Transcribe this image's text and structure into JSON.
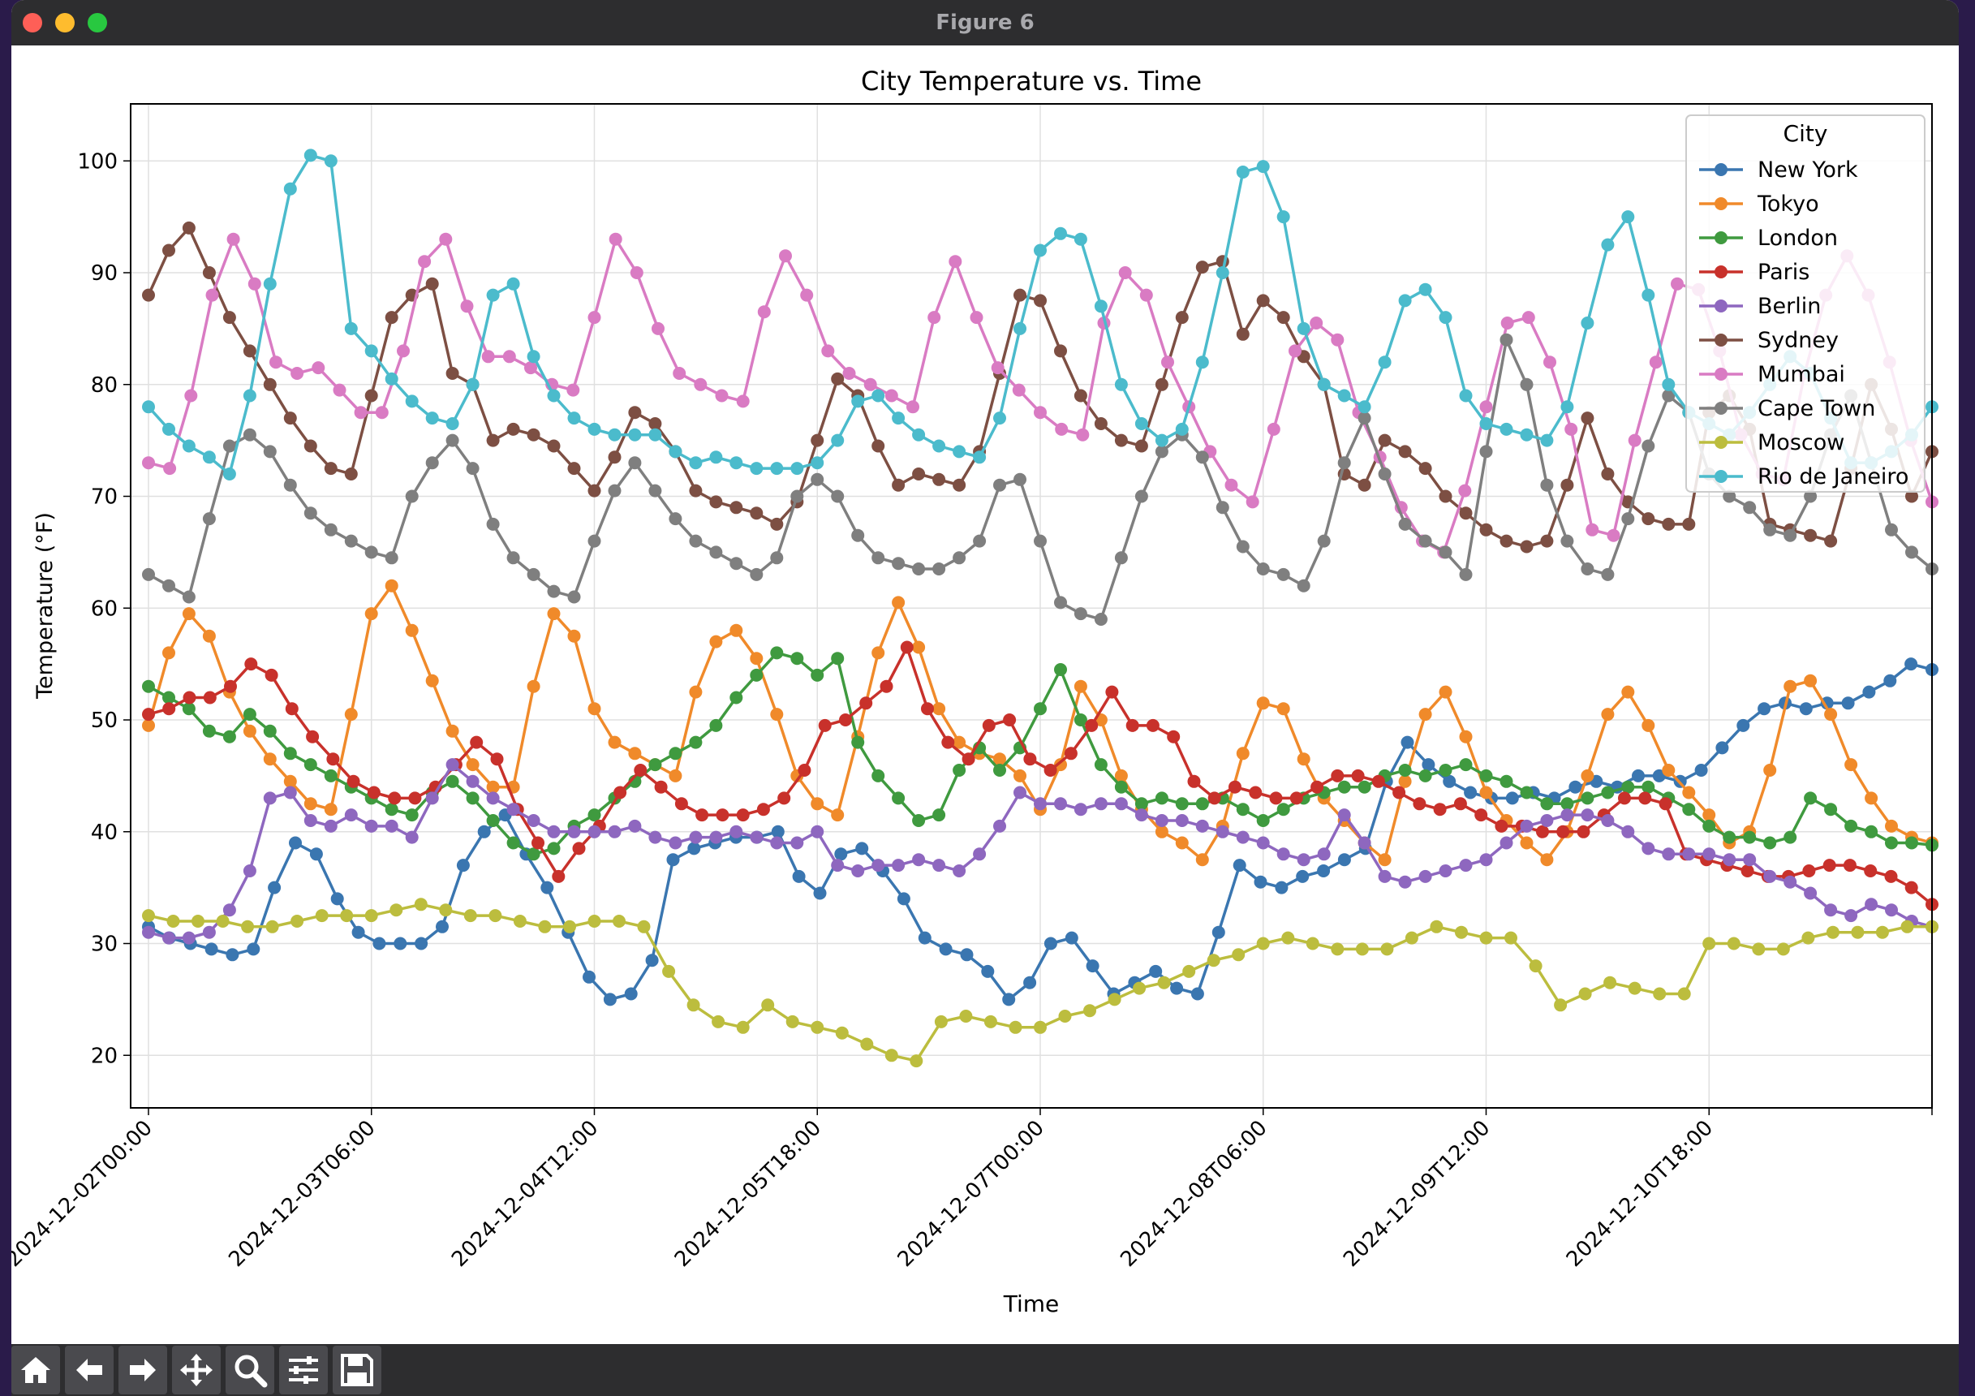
{
  "window": {
    "title": "Figure 6"
  },
  "toolbar": {
    "buttons": [
      {
        "name": "home-icon"
      },
      {
        "name": "back-arrow-icon"
      },
      {
        "name": "forward-arrow-icon"
      },
      {
        "name": "pan-move-icon"
      },
      {
        "name": "zoom-magnifier-icon"
      },
      {
        "name": "configure-subplots-icon"
      },
      {
        "name": "save-floppy-icon"
      }
    ]
  },
  "chart_data": {
    "type": "line",
    "title": "City Temperature vs. Time",
    "xlabel": "Time",
    "ylabel": "Temperature (°F)",
    "x_start": "2024-12-02T00:00",
    "x_step_hours": 3,
    "xlim": [
      "2024-12-01T21:36",
      "2024-12-12T00:00"
    ],
    "ylim": [
      15.3,
      105.1
    ],
    "yticks": [
      20,
      30,
      40,
      50,
      60,
      70,
      80,
      90,
      100
    ],
    "xtick_labels": [
      "2024-12-02T00:00",
      "2024-12-03T06:00",
      "2024-12-04T12:00",
      "2024-12-05T18:00",
      "2024-12-07T00:00",
      "2024-12-08T06:00",
      "2024-12-09T12:00",
      "2024-12-10T18:00"
    ],
    "grid": true,
    "legend": {
      "title": "City",
      "placement": "top-right"
    },
    "marker": "circle",
    "series": [
      {
        "name": "New York",
        "color": "#3a76b0",
        "values": [
          31.5,
          30.5,
          30.0,
          29.5,
          29.0,
          29.5,
          35.0,
          39.0,
          38.0,
          34.0,
          31.0,
          30.0,
          30.0,
          30.0,
          31.5,
          37.0,
          40.0,
          41.5,
          38.0,
          35.0,
          31.0,
          27.0,
          25.0,
          25.5,
          28.5,
          37.5,
          38.5,
          39.0,
          39.5,
          39.5,
          40.0,
          36.0,
          34.5,
          38.0,
          38.5,
          36.5,
          34.0,
          30.5,
          29.5,
          29.0,
          27.5,
          25.0,
          26.5,
          30.0,
          30.5,
          28.0,
          25.5,
          26.5,
          27.5,
          26.0,
          25.5,
          31.0,
          37.0,
          35.5,
          35.0,
          36.0,
          36.5,
          37.5,
          38.5,
          44.5,
          48.0,
          46.0,
          44.5,
          43.5,
          43.0,
          43.0,
          43.5,
          43.0,
          44.0,
          44.5,
          44.0,
          45.0,
          45.0,
          44.5,
          45.5,
          47.5,
          49.5,
          51.0,
          51.5,
          51.0,
          51.5,
          51.5,
          52.5,
          53.5,
          55.0,
          54.5
        ]
      },
      {
        "name": "Tokyo",
        "color": "#f08a2a",
        "values": [
          49.5,
          56.0,
          59.5,
          57.5,
          52.5,
          49.0,
          46.5,
          44.5,
          42.5,
          42.0,
          50.5,
          59.5,
          62.0,
          58.0,
          53.5,
          49.0,
          46.0,
          44.0,
          44.0,
          53.0,
          59.5,
          57.5,
          51.0,
          48.0,
          47.0,
          46.0,
          45.0,
          52.5,
          57.0,
          58.0,
          55.5,
          50.5,
          45.0,
          42.5,
          41.5,
          48.5,
          56.0,
          60.5,
          56.5,
          51.0,
          48.0,
          47.0,
          46.5,
          45.0,
          42.0,
          46.0,
          53.0,
          50.0,
          45.0,
          42.0,
          40.0,
          39.0,
          37.5,
          40.5,
          47.0,
          51.5,
          51.0,
          46.5,
          43.0,
          41.0,
          39.0,
          37.5,
          44.5,
          50.5,
          52.5,
          48.5,
          43.5,
          41.0,
          39.0,
          37.5,
          40.0,
          45.0,
          50.5,
          52.5,
          49.5,
          45.5,
          43.5,
          41.5,
          39.0,
          40.0,
          45.5,
          53.0,
          53.5,
          50.5,
          46.0,
          43.0,
          40.5,
          39.5,
          39.0
        ]
      },
      {
        "name": "London",
        "color": "#3f9a3f",
        "values": [
          53.0,
          52.0,
          51.0,
          49.0,
          48.5,
          50.5,
          49.0,
          47.0,
          46.0,
          45.0,
          44.0,
          43.0,
          42.0,
          41.5,
          43.5,
          44.5,
          43.0,
          41.0,
          39.0,
          38.0,
          38.5,
          40.5,
          41.5,
          43.0,
          44.5,
          46.0,
          47.0,
          48.0,
          49.5,
          52.0,
          54.0,
          56.0,
          55.5,
          54.0,
          55.5,
          48.0,
          45.0,
          43.0,
          41.0,
          41.5,
          45.5,
          47.5,
          45.5,
          47.5,
          51.0,
          54.5,
          50.0,
          46.0,
          44.0,
          42.5,
          43.0,
          42.5,
          42.5,
          43.0,
          42.0,
          41.0,
          42.0,
          43.0,
          43.5,
          44.0,
          44.0,
          45.0,
          45.5,
          45.0,
          45.5,
          46.0,
          45.0,
          44.5,
          43.5,
          42.5,
          42.5,
          43.0,
          43.5,
          44.0,
          44.0,
          43.0,
          42.0,
          40.5,
          39.5,
          39.5,
          39.0,
          39.5,
          43.0,
          42.0,
          40.5,
          40.0,
          39.0,
          39.0,
          38.8
        ]
      },
      {
        "name": "Paris",
        "color": "#c8312b",
        "values": [
          50.5,
          51.0,
          52.0,
          52.0,
          53.0,
          55.0,
          54.0,
          51.0,
          48.5,
          46.5,
          44.5,
          43.5,
          43.0,
          43.0,
          44.0,
          46.0,
          48.0,
          46.5,
          42.0,
          39.0,
          36.0,
          38.5,
          40.5,
          43.5,
          45.5,
          44.0,
          42.5,
          41.5,
          41.5,
          41.5,
          42.0,
          43.0,
          45.5,
          49.5,
          50.0,
          51.5,
          53.0,
          56.5,
          51.0,
          48.0,
          46.5,
          49.5,
          50.0,
          46.5,
          45.5,
          47.0,
          49.5,
          52.5,
          49.5,
          49.5,
          48.5,
          44.5,
          43.0,
          44.0,
          43.5,
          43.0,
          43.0,
          44.0,
          45.0,
          45.0,
          44.5,
          43.5,
          42.5,
          42.0,
          42.5,
          41.5,
          40.5,
          40.5,
          40.0,
          40.0,
          40.0,
          41.5,
          43.0,
          43.0,
          42.5,
          38.0,
          37.5,
          37.0,
          36.5,
          36.0,
          36.0,
          36.5,
          37.0,
          37.0,
          36.5,
          36.0,
          35.0,
          33.5
        ]
      },
      {
        "name": "Berlin",
        "color": "#8e67bf",
        "values": [
          31.0,
          30.5,
          30.5,
          31.0,
          33.0,
          36.5,
          43.0,
          43.5,
          41.0,
          40.5,
          41.5,
          40.5,
          40.5,
          39.5,
          43.0,
          46.0,
          44.5,
          43.0,
          42.0,
          41.0,
          40.0,
          40.0,
          40.0,
          40.0,
          40.5,
          39.5,
          39.0,
          39.5,
          39.5,
          40.0,
          39.5,
          39.0,
          39.0,
          40.0,
          37.0,
          36.5,
          37.0,
          37.0,
          37.5,
          37.0,
          36.5,
          38.0,
          40.5,
          43.5,
          42.5,
          42.5,
          42.0,
          42.5,
          42.5,
          41.5,
          41.0,
          41.0,
          40.5,
          40.0,
          39.5,
          39.0,
          38.0,
          37.5,
          38.0,
          41.5,
          39.0,
          36.0,
          35.5,
          36.0,
          36.5,
          37.0,
          37.5,
          39.0,
          40.5,
          41.0,
          41.5,
          41.5,
          41.0,
          40.0,
          38.5,
          38.0,
          38.0,
          38.0,
          37.5,
          37.5,
          36.0,
          35.5,
          34.5,
          33.0,
          32.5,
          33.5,
          33.0,
          32.0,
          31.5
        ]
      },
      {
        "name": "Sydney",
        "color": "#7d4f43",
        "values": [
          88.0,
          92.0,
          94.0,
          90.0,
          86.0,
          83.0,
          80.0,
          77.0,
          74.5,
          72.5,
          72.0,
          79.0,
          86.0,
          88.0,
          89.0,
          81.0,
          80.0,
          75.0,
          76.0,
          75.5,
          74.5,
          72.5,
          70.5,
          73.5,
          77.5,
          76.5,
          74.0,
          70.5,
          69.5,
          69.0,
          68.5,
          67.5,
          69.5,
          75.0,
          80.5,
          79.0,
          74.5,
          71.0,
          72.0,
          71.5,
          71.0,
          74.0,
          81.0,
          88.0,
          87.5,
          83.0,
          79.0,
          76.5,
          75.0,
          74.5,
          80.0,
          86.0,
          90.5,
          91.0,
          84.5,
          87.5,
          86.0,
          82.5,
          80.0,
          72.0,
          71.0,
          75.0,
          74.0,
          72.5,
          70.0,
          68.5,
          67.0,
          66.0,
          65.5,
          66.0,
          71.0,
          77.0,
          72.0,
          69.5,
          68.0,
          67.5,
          67.5,
          77.5,
          79.0,
          76.0,
          67.5,
          67.0,
          66.5,
          66.0,
          72.5,
          80.0,
          76.0,
          70.0,
          74.0
        ]
      },
      {
        "name": "Mumbai",
        "color": "#d97bc3",
        "values": [
          73.0,
          72.5,
          79.0,
          88.0,
          93.0,
          89.0,
          82.0,
          81.0,
          81.5,
          79.5,
          77.5,
          77.5,
          83.0,
          91.0,
          93.0,
          87.0,
          82.5,
          82.5,
          81.5,
          80.0,
          79.5,
          86.0,
          93.0,
          90.0,
          85.0,
          81.0,
          80.0,
          79.0,
          78.5,
          86.5,
          91.5,
          88.0,
          83.0,
          81.0,
          80.0,
          79.0,
          78.0,
          86.0,
          91.0,
          86.0,
          81.5,
          79.5,
          77.5,
          76.0,
          75.5,
          85.5,
          90.0,
          88.0,
          82.0,
          78.0,
          74.0,
          71.0,
          69.5,
          76.0,
          83.0,
          85.5,
          84.0,
          77.5,
          73.5,
          69.0,
          66.0,
          65.0,
          70.5,
          78.0,
          85.5,
          86.0,
          82.0,
          76.0,
          67.0,
          66.5,
          75.0,
          82.0,
          89.0,
          88.5,
          83.0,
          75.5,
          72.0,
          71.5,
          81.0,
          88.0,
          91.5,
          88.0,
          82.0,
          75.0,
          69.5
        ]
      },
      {
        "name": "Cape Town",
        "color": "#7f7f7f",
        "values": [
          63.0,
          62.0,
          61.0,
          68.0,
          74.5,
          75.5,
          74.0,
          71.0,
          68.5,
          67.0,
          66.0,
          65.0,
          64.5,
          70.0,
          73.0,
          75.0,
          72.5,
          67.5,
          64.5,
          63.0,
          61.5,
          61.0,
          66.0,
          70.5,
          73.0,
          70.5,
          68.0,
          66.0,
          65.0,
          64.0,
          63.0,
          64.5,
          70.0,
          71.5,
          70.0,
          66.5,
          64.5,
          64.0,
          63.5,
          63.5,
          64.5,
          66.0,
          71.0,
          71.5,
          66.0,
          60.5,
          59.5,
          59.0,
          64.5,
          70.0,
          74.0,
          75.5,
          73.5,
          69.0,
          65.5,
          63.5,
          63.0,
          62.0,
          66.0,
          73.0,
          77.0,
          72.0,
          67.5,
          66.0,
          65.0,
          63.0,
          74.0,
          84.0,
          80.0,
          71.0,
          66.0,
          63.5,
          63.0,
          68.0,
          74.5,
          79.0,
          77.5,
          72.0,
          70.0,
          69.0,
          67.0,
          66.5,
          70.0,
          75.5,
          79.0,
          73.0,
          67.0,
          65.0,
          63.5
        ]
      },
      {
        "name": "Moscow",
        "color": "#bcbd3e",
        "values": [
          32.5,
          32.0,
          32.0,
          32.0,
          31.5,
          31.5,
          32.0,
          32.5,
          32.5,
          32.5,
          33.0,
          33.5,
          33.0,
          32.5,
          32.5,
          32.0,
          31.5,
          31.5,
          32.0,
          32.0,
          31.5,
          27.5,
          24.5,
          23.0,
          22.5,
          24.5,
          23.0,
          22.5,
          22.0,
          21.0,
          20.0,
          19.5,
          23.0,
          23.5,
          23.0,
          22.5,
          22.5,
          23.5,
          24.0,
          25.0,
          26.0,
          26.5,
          27.5,
          28.5,
          29.0,
          30.0,
          30.5,
          30.0,
          29.5,
          29.5,
          29.5,
          30.5,
          31.5,
          31.0,
          30.5,
          30.5,
          28.0,
          24.5,
          25.5,
          26.5,
          26.0,
          25.5,
          25.5,
          30.0,
          30.0,
          29.5,
          29.5,
          30.5,
          31.0,
          31.0,
          31.0,
          31.5,
          31.5
        ]
      },
      {
        "name": "Rio de Janeiro",
        "color": "#4bbbcc",
        "values": [
          78.0,
          76.0,
          74.5,
          73.5,
          72.0,
          79.0,
          89.0,
          97.5,
          100.5,
          100.0,
          85.0,
          83.0,
          80.5,
          78.5,
          77.0,
          76.5,
          80.0,
          88.0,
          89.0,
          82.5,
          79.0,
          77.0,
          76.0,
          75.5,
          75.5,
          75.5,
          74.0,
          73.0,
          73.5,
          73.0,
          72.5,
          72.5,
          72.5,
          73.0,
          75.0,
          78.5,
          79.0,
          77.0,
          75.5,
          74.5,
          74.0,
          73.5,
          77.0,
          85.0,
          92.0,
          93.5,
          93.0,
          87.0,
          80.0,
          76.5,
          75.0,
          76.0,
          82.0,
          90.0,
          99.0,
          99.5,
          95.0,
          85.0,
          80.0,
          79.0,
          78.0,
          82.0,
          87.5,
          88.5,
          86.0,
          79.0,
          76.5,
          76.0,
          75.5,
          75.0,
          78.0,
          85.5,
          92.5,
          95.0,
          88.0,
          80.0,
          77.5,
          76.5,
          75.5,
          77.5,
          80.0,
          82.5,
          81.0,
          77.0,
          73.0,
          73.0,
          74.0,
          75.5,
          78.0
        ]
      }
    ]
  }
}
